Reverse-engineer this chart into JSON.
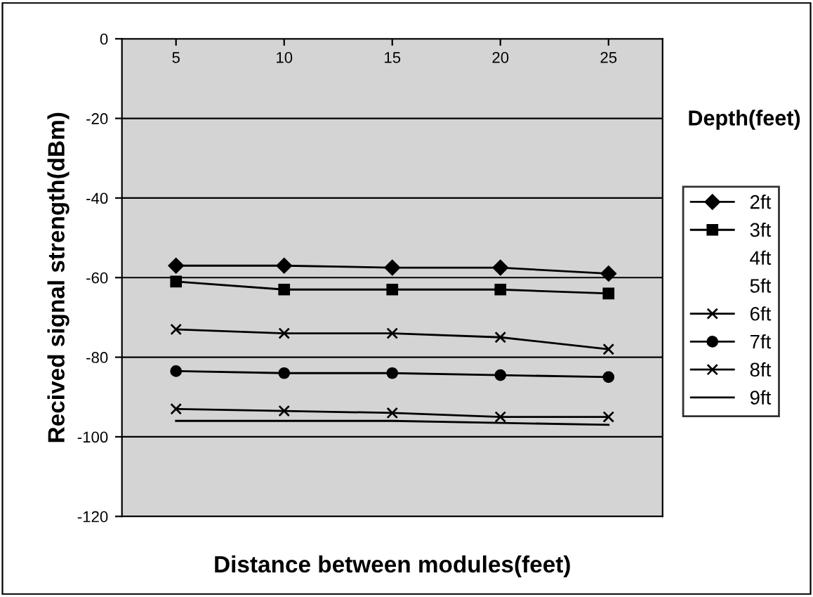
{
  "chart_data": {
    "type": "line",
    "xlabel": "Distance between modules(feet)",
    "ylabel": "Recived signal strength(dBm)",
    "legend_title": "Depth(feet)",
    "categories": [
      "5",
      "10",
      "15",
      "20",
      "25"
    ],
    "series": [
      {
        "name": "2ft",
        "color": "#000000",
        "marker": "diamond",
        "values": [
          -57,
          -57,
          -57.5,
          -57.5,
          -59
        ]
      },
      {
        "name": "3ft",
        "color": "#000000",
        "marker": "square",
        "values": [
          -61,
          -63,
          -63,
          -63,
          -64
        ]
      },
      {
        "name": "4ft",
        "color": "#000000",
        "marker": "none",
        "values": [
          null,
          null,
          null,
          null,
          null
        ]
      },
      {
        "name": "5ft",
        "color": "#000000",
        "marker": "none",
        "values": [
          null,
          null,
          null,
          null,
          null
        ]
      },
      {
        "name": "6ft",
        "color": "#000000",
        "marker": "cross",
        "values": [
          -73,
          -74,
          -74,
          -75,
          -78
        ]
      },
      {
        "name": "7ft",
        "color": "#000000",
        "marker": "circle",
        "values": [
          -83.5,
          -84,
          -84,
          -84.5,
          -85
        ]
      },
      {
        "name": "8ft",
        "color": "#000000",
        "marker": "cross",
        "values": [
          -93,
          -93.5,
          -94,
          -95,
          -95
        ]
      },
      {
        "name": "9ft",
        "color": "#000000",
        "marker": "none",
        "values": [
          -96,
          -96,
          -96,
          -96.5,
          -97
        ]
      }
    ],
    "ylim": [
      -120,
      0
    ],
    "yticks": [
      -120,
      -100,
      -80,
      -60,
      -40,
      -20,
      0
    ],
    "grid": "y",
    "legend": "right"
  }
}
